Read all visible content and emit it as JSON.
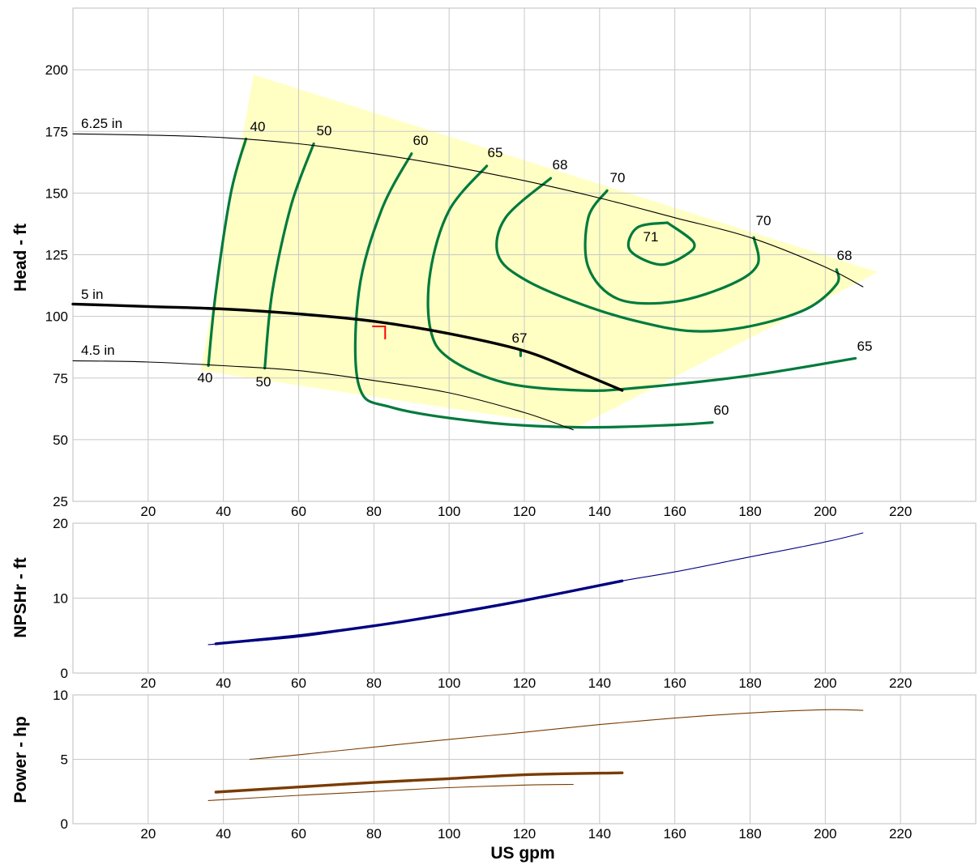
{
  "chart_data": [
    {
      "type": "line",
      "panel": "head",
      "ylabel": "Head - ft",
      "xlabel": "",
      "xlim": [
        0,
        240
      ],
      "ylim": [
        25,
        225
      ],
      "x_ticks": [
        20,
        40,
        60,
        80,
        100,
        120,
        140,
        160,
        180,
        200,
        220
      ],
      "y_ticks": [
        25,
        50,
        75,
        100,
        125,
        150,
        175,
        200
      ],
      "grid": true,
      "operating_region": [
        [
          48,
          198
        ],
        [
          214,
          118
        ],
        [
          134,
          55
        ],
        [
          34,
          78
        ],
        [
          48,
          198
        ]
      ],
      "series": [
        {
          "name": "6.25 in",
          "style": "thin",
          "color": "#000000",
          "points": [
            [
              0,
              174
            ],
            [
              20,
              173.5
            ],
            [
              40,
              172.5
            ],
            [
              60,
              170
            ],
            [
              80,
              166
            ],
            [
              100,
              161
            ],
            [
              120,
              155
            ],
            [
              140,
              148
            ],
            [
              160,
              140
            ],
            [
              180,
              132
            ],
            [
              200,
              120
            ],
            [
              210,
              112
            ]
          ]
        },
        {
          "name": "5 in",
          "style": "thick",
          "color": "#000000",
          "points": [
            [
              0,
              105
            ],
            [
              20,
              104
            ],
            [
              40,
              103
            ],
            [
              60,
              101
            ],
            [
              80,
              98
            ],
            [
              100,
              93
            ],
            [
              120,
              86
            ],
            [
              135,
              77
            ],
            [
              146,
              70
            ]
          ]
        },
        {
          "name": "4.5 in",
          "style": "thin",
          "color": "#000000",
          "points": [
            [
              0,
              82
            ],
            [
              20,
              81.5
            ],
            [
              40,
              80
            ],
            [
              60,
              78
            ],
            [
              80,
              74
            ],
            [
              100,
              69
            ],
            [
              120,
              61
            ],
            [
              133,
              54
            ]
          ]
        }
      ],
      "efficiency_contours": [
        {
          "label": "40",
          "color": "#007a3d",
          "points": [
            [
              46,
              172
            ],
            [
              42,
              150
            ],
            [
              38,
              110
            ],
            [
              36,
              80
            ]
          ]
        },
        {
          "label": "50",
          "color": "#007a3d",
          "points": [
            [
              64,
              170
            ],
            [
              58,
              145
            ],
            [
              53,
              110
            ],
            [
              51,
              79
            ]
          ]
        },
        {
          "label": "60",
          "color": "#007a3d",
          "points": [
            [
              90,
              166
            ],
            [
              82,
              143
            ],
            [
              76,
              110
            ],
            [
              76,
              72
            ],
            [
              85,
              63
            ],
            [
              110,
              57
            ],
            [
              135,
              55
            ],
            [
              160,
              56
            ],
            [
              170,
              57
            ]
          ]
        },
        {
          "label": "65",
          "color": "#007a3d",
          "points": [
            [
              110,
              161
            ],
            [
              100,
              143
            ],
            [
              95,
              118
            ],
            [
              95,
              95
            ],
            [
              100,
              83
            ],
            [
              115,
              73
            ],
            [
              135,
              70
            ],
            [
              150,
              71
            ],
            [
              180,
              76
            ],
            [
              208,
              83
            ]
          ]
        },
        {
          "label": "68",
          "color": "#007a3d",
          "points": [
            [
              127,
              156
            ],
            [
              115,
              140
            ],
            [
              113,
              125
            ],
            [
              120,
              115
            ],
            [
              135,
              105
            ],
            [
              150,
              98
            ],
            [
              165,
              94
            ],
            [
              180,
              96
            ],
            [
              195,
              103
            ],
            [
              203,
              113
            ],
            [
              203,
              119
            ]
          ]
        },
        {
          "label": "70",
          "color": "#007a3d",
          "points": [
            [
              142,
              151
            ],
            [
              137,
              140
            ],
            [
              137,
              120
            ],
            [
              145,
              107
            ],
            [
              160,
              106
            ],
            [
              175,
              113
            ],
            [
              182,
              121
            ],
            [
              181,
              132
            ]
          ]
        },
        {
          "label": "71",
          "color": "#007a3d",
          "points": [
            [
              158,
              138
            ],
            [
              150,
              136
            ],
            [
              148,
              127
            ],
            [
              156,
              121
            ],
            [
              163,
              125
            ],
            [
              165,
              130
            ],
            [
              158,
              138
            ]
          ]
        },
        {
          "label": "67",
          "color": "#007a3d",
          "points": [
            [
              119,
              86
            ],
            [
              119,
              84
            ]
          ]
        }
      ],
      "contour_labels": [
        "40",
        "50",
        "60",
        "65",
        "68",
        "70",
        "70",
        "71",
        "68",
        "65",
        "60",
        "67",
        "40",
        "50"
      ],
      "diameter_labels": [
        "6.25 in",
        "5 in",
        "4.5 in"
      ],
      "marker": {
        "x": 83,
        "y": 93,
        "color": "#ff0000"
      }
    },
    {
      "type": "line",
      "panel": "npsh",
      "ylabel": "NPSHr - ft",
      "xlim": [
        0,
        240
      ],
      "ylim": [
        0,
        20
      ],
      "x_ticks": [
        20,
        40,
        60,
        80,
        100,
        120,
        140,
        160,
        180,
        200,
        220
      ],
      "y_ticks": [
        0,
        10,
        20
      ],
      "grid": true,
      "series": [
        {
          "name": "",
          "style": "thin",
          "color": "#000080",
          "points": [
            [
              36,
              3.8
            ],
            [
              60,
              4.8
            ],
            [
              80,
              6.3
            ],
            [
              100,
              8
            ],
            [
              120,
              9.8
            ],
            [
              146,
              12.3
            ],
            [
              160,
              13.5
            ],
            [
              180,
              15.5
            ],
            [
              200,
              17.5
            ],
            [
              210,
              18.7
            ]
          ]
        },
        {
          "name": "",
          "style": "thick",
          "color": "#000080",
          "points": [
            [
              38,
              3.9
            ],
            [
              60,
              5
            ],
            [
              80,
              6.3
            ],
            [
              100,
              7.9
            ],
            [
              120,
              9.7
            ],
            [
              146,
              12.3
            ]
          ]
        }
      ]
    },
    {
      "type": "line",
      "panel": "power",
      "ylabel": "Power - hp",
      "xlabel": "US gpm",
      "xlim": [
        0,
        240
      ],
      "ylim": [
        0,
        10
      ],
      "x_ticks": [
        20,
        40,
        60,
        80,
        100,
        120,
        140,
        160,
        180,
        200,
        220
      ],
      "y_ticks": [
        0,
        5,
        10
      ],
      "grid": true,
      "series": [
        {
          "name": "",
          "style": "thin",
          "color": "#7a3b00",
          "points": [
            [
              47,
              5
            ],
            [
              60,
              5.35
            ],
            [
              80,
              5.95
            ],
            [
              100,
              6.55
            ],
            [
              120,
              7.1
            ],
            [
              140,
              7.7
            ],
            [
              160,
              8.2
            ],
            [
              180,
              8.6
            ],
            [
              200,
              8.85
            ],
            [
              210,
              8.8
            ]
          ]
        },
        {
          "name": "",
          "style": "thick",
          "color": "#7a3b00",
          "points": [
            [
              38,
              2.45
            ],
            [
              60,
              2.85
            ],
            [
              80,
              3.2
            ],
            [
              100,
              3.5
            ],
            [
              120,
              3.8
            ],
            [
              146,
              3.95
            ]
          ]
        },
        {
          "name": "",
          "style": "thin",
          "color": "#7a3b00",
          "points": [
            [
              36,
              1.8
            ],
            [
              60,
              2.2
            ],
            [
              80,
              2.5
            ],
            [
              100,
              2.8
            ],
            [
              120,
              3
            ],
            [
              133,
              3.05
            ]
          ]
        }
      ]
    }
  ]
}
